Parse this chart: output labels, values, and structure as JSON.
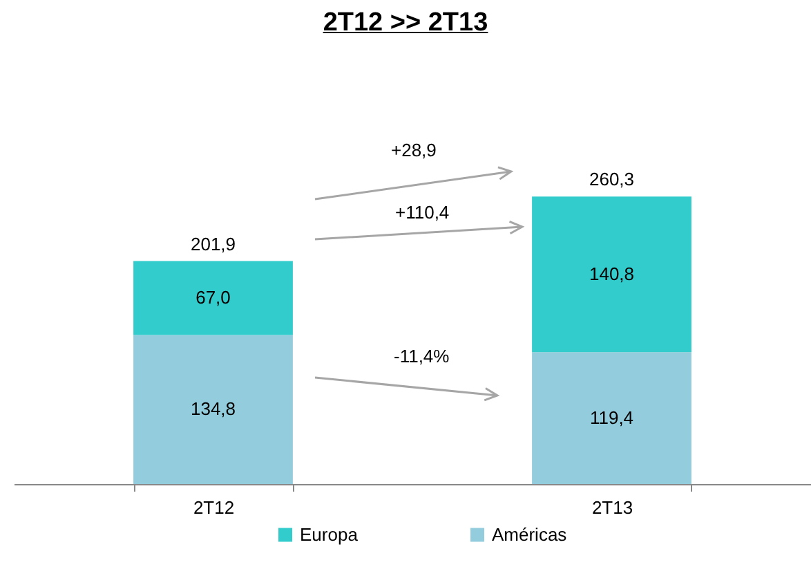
{
  "chart_data": {
    "type": "bar",
    "title": "2T12 >> 2T13",
    "stacked": true,
    "categories": [
      "2T12",
      "2T13"
    ],
    "series": [
      {
        "name": "Américas",
        "color": "#93cddd",
        "values": [
          134.8,
          119.4
        ],
        "value_labels": [
          "134,8",
          "119,4"
        ]
      },
      {
        "name": "Europa",
        "color": "#33cccc",
        "values": [
          67.0,
          140.8
        ],
        "value_labels": [
          "67,0",
          "140,8"
        ]
      }
    ],
    "totals": [
      "201,9",
      "260,3"
    ],
    "annotations": [
      "+28,9",
      "+110,4",
      "-11,4%"
    ],
    "legend": "bottom",
    "grid": false
  }
}
